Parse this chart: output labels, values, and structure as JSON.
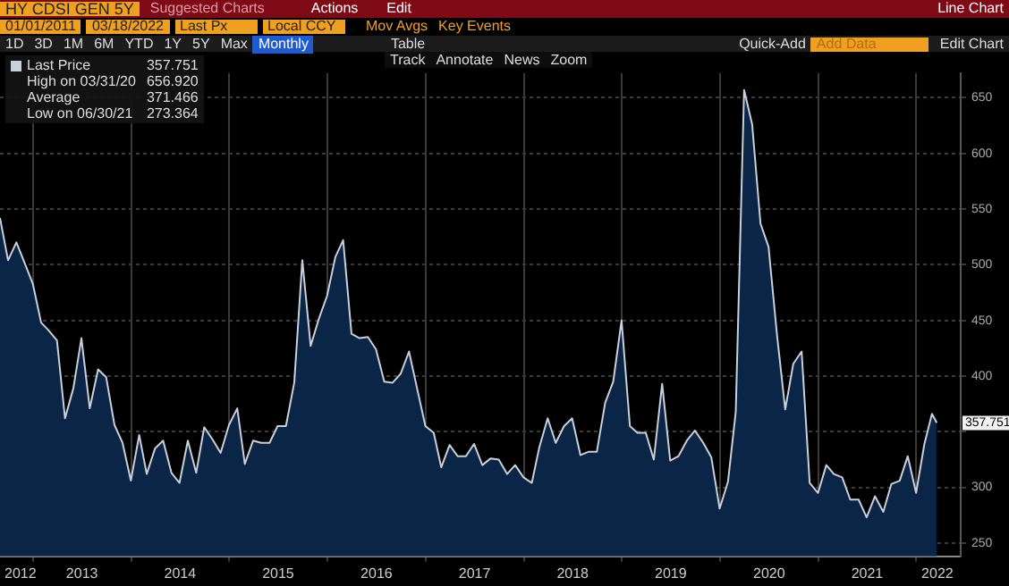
{
  "chart_data": {
    "type": "area",
    "title": "HY CDSI GEN 5Y",
    "subtitle": "Line Chart",
    "annotations": [
      "Suggested Charts",
      "Actions",
      "Edit",
      "01/01/2011",
      "03/18/2022",
      "Last Px",
      "Local CCY",
      "Mov Avgs",
      "Key Events",
      "1D",
      "3D",
      "1M",
      "6M",
      "YTD",
      "1Y",
      "5Y",
      "Max",
      "Monthly",
      "Table",
      "Quick-Add",
      "Add Data",
      "Edit Chart",
      "Track",
      "Annotate",
      "News",
      "Zoom",
      "357.751",
      "High on 03/31/20",
      "656.920",
      "Average",
      "371.466",
      "Low on 06/30/21",
      "273.364",
      {
        "text": "357.751",
        "x": "2022-03-18",
        "y": 357.751
      }
    ],
    "x": [
      "2012-08-31",
      "2012-09-30",
      "2012-10-31",
      "2012-11-30",
      "2012-12-31",
      "2013-01-31",
      "2013-02-28",
      "2013-03-31",
      "2013-04-30",
      "2013-05-31",
      "2013-06-30",
      "2013-07-31",
      "2013-08-31",
      "2013-09-30",
      "2013-10-31",
      "2013-11-30",
      "2013-12-31",
      "2014-01-31",
      "2014-02-28",
      "2014-03-31",
      "2014-04-30",
      "2014-05-31",
      "2014-06-30",
      "2014-07-31",
      "2014-08-31",
      "2014-09-30",
      "2014-10-31",
      "2014-11-30",
      "2014-12-31",
      "2015-01-31",
      "2015-02-28",
      "2015-03-31",
      "2015-04-30",
      "2015-05-31",
      "2015-06-30",
      "2015-07-31",
      "2015-08-31",
      "2015-09-30",
      "2015-10-31",
      "2015-11-30",
      "2015-12-31",
      "2016-01-31",
      "2016-02-29",
      "2016-03-31",
      "2016-04-30",
      "2016-05-31",
      "2016-06-30",
      "2016-07-31",
      "2016-08-31",
      "2016-09-30",
      "2016-10-31",
      "2016-11-30",
      "2016-12-31",
      "2017-01-31",
      "2017-02-28",
      "2017-03-31",
      "2017-04-30",
      "2017-05-31",
      "2017-06-30",
      "2017-07-31",
      "2017-08-31",
      "2017-09-30",
      "2017-10-31",
      "2017-11-30",
      "2017-12-31",
      "2018-01-31",
      "2018-02-28",
      "2018-03-31",
      "2018-04-30",
      "2018-05-31",
      "2018-06-30",
      "2018-07-31",
      "2018-08-31",
      "2018-09-30",
      "2018-10-31",
      "2018-11-30",
      "2018-12-31",
      "2019-01-31",
      "2019-02-28",
      "2019-03-31",
      "2019-04-30",
      "2019-05-31",
      "2019-06-30",
      "2019-07-31",
      "2019-08-31",
      "2019-09-30",
      "2019-10-31",
      "2019-11-30",
      "2019-12-31",
      "2020-01-31",
      "2020-02-29",
      "2020-03-31",
      "2020-04-30",
      "2020-05-31",
      "2020-06-30",
      "2020-07-31",
      "2020-08-31",
      "2020-09-30",
      "2020-10-31",
      "2020-11-30",
      "2020-12-31",
      "2021-01-31",
      "2021-02-28",
      "2021-03-31",
      "2021-04-30",
      "2021-05-31",
      "2021-06-30",
      "2021-07-31",
      "2021-08-31",
      "2021-09-30",
      "2021-10-31",
      "2021-11-30",
      "2021-12-31",
      "2022-01-31",
      "2022-02-28",
      "2022-03-18"
    ],
    "series": [
      {
        "name": "Last Price",
        "color": "#c8d0dc",
        "values": [
          542,
          504,
          520,
          502,
          483,
          448,
          441,
          432,
          362,
          389,
          434,
          371,
          406,
          399,
          356,
          340,
          306,
          347,
          312,
          335,
          342,
          313,
          304,
          342,
          313,
          354,
          343,
          331,
          356,
          371,
          321,
          342,
          340,
          340,
          355,
          355,
          394,
          504,
          427,
          451,
          472,
          507,
          522,
          438,
          434,
          435,
          424,
          395,
          394,
          402,
          422,
          389,
          355,
          349,
          318,
          338,
          328,
          328,
          339,
          320,
          326,
          325,
          312,
          320,
          309,
          304,
          336,
          362,
          340,
          355,
          362,
          329,
          332,
          332,
          376,
          395,
          450,
          355,
          349,
          349,
          325,
          393,
          324,
          328,
          342,
          351,
          340,
          327,
          281,
          305,
          368,
          657,
          626,
          537,
          516,
          438,
          370,
          411,
          422,
          304,
          295,
          320,
          312,
          309,
          289,
          289,
          273,
          292,
          278,
          303,
          306,
          328,
          295,
          339,
          366,
          358
        ]
      }
    ],
    "ylim": [
      238,
      672
    ],
    "yticks": [
      250,
      300,
      {
        "value": 350,
        "label": null
      },
      400,
      450,
      500,
      550,
      600,
      650
    ],
    "xlim": [
      "2012-08-31",
      "2022-06-15"
    ],
    "xticks": [
      {
        "value": "2012-11-15",
        "label": "2012"
      },
      {
        "value": "2013-01-01",
        "label": null
      },
      {
        "value": "2013-07-02",
        "label": "2013"
      },
      {
        "value": "2014-01-01",
        "label": null
      },
      {
        "value": "2014-07-02",
        "label": "2014"
      },
      {
        "value": "2015-01-01",
        "label": null
      },
      {
        "value": "2015-07-02",
        "label": "2015"
      },
      {
        "value": "2016-01-01",
        "label": null
      },
      {
        "value": "2016-07-02",
        "label": "2016"
      },
      {
        "value": "2017-01-01",
        "label": null
      },
      {
        "value": "2017-07-02",
        "label": "2017"
      },
      {
        "value": "2018-01-01",
        "label": null
      },
      {
        "value": "2018-07-02",
        "label": "2018"
      },
      {
        "value": "2019-01-01",
        "label": null
      },
      {
        "value": "2019-07-02",
        "label": "2019"
      },
      {
        "value": "2020-01-01",
        "label": null
      },
      {
        "value": "2020-07-02",
        "label": "2020"
      },
      {
        "value": "2021-01-01",
        "label": null
      },
      {
        "value": "2021-07-02",
        "label": "2021"
      },
      {
        "value": "2022-01-01",
        "label": null
      },
      {
        "value": "2022-03-20",
        "label": "2022"
      }
    ],
    "grid": true,
    "legend": "top left",
    "marker": "none",
    "line_style": "solid"
  }
}
